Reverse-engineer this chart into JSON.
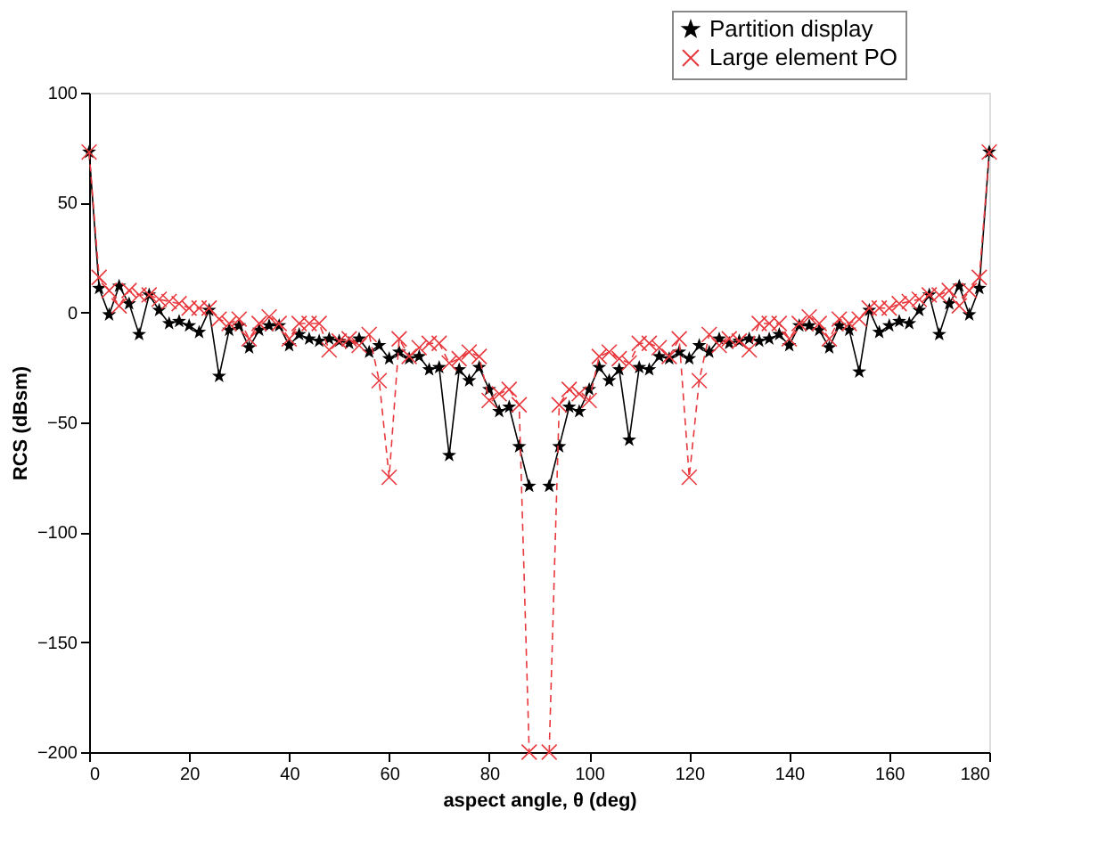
{
  "chart_data": {
    "type": "line",
    "xlabel": "aspect angle, θ (deg)",
    "ylabel": "RCS (dBsm)",
    "x": [
      0,
      2,
      4,
      6,
      8,
      10,
      12,
      14,
      16,
      18,
      20,
      22,
      24,
      26,
      28,
      30,
      32,
      34,
      36,
      38,
      40,
      42,
      44,
      46,
      48,
      50,
      52,
      54,
      56,
      58,
      60,
      62,
      64,
      66,
      68,
      70,
      72,
      74,
      76,
      78,
      80,
      82,
      84,
      86,
      88,
      90,
      92,
      94,
      96,
      98,
      100,
      102,
      104,
      106,
      108,
      110,
      112,
      114,
      116,
      118,
      120,
      122,
      124,
      126,
      128,
      130,
      132,
      134,
      136,
      138,
      140,
      142,
      144,
      146,
      148,
      150,
      152,
      154,
      156,
      158,
      160,
      162,
      164,
      166,
      168,
      170,
      172,
      174,
      176,
      178,
      180
    ],
    "series": [
      {
        "name": "Partition display",
        "color": "#000000",
        "marker": "star",
        "line_style": "solid",
        "values": [
          73,
          11,
          -1,
          12,
          4,
          -10,
          8,
          1,
          -5,
          -4,
          -6,
          -9,
          1,
          -29,
          -8,
          -6,
          -16,
          -8,
          -6,
          -6,
          -15,
          -10,
          -12,
          -13,
          -12,
          -13,
          -14,
          -12,
          -18,
          -15,
          -21,
          -18,
          -21,
          -20,
          -26,
          -25,
          -65,
          -26,
          -31,
          -25,
          -35,
          -45,
          -43,
          -61,
          -79,
          null,
          -79,
          -61,
          -43,
          -45,
          -35,
          -25,
          -31,
          -26,
          -58,
          -25,
          -26,
          -20,
          -21,
          -18,
          -21,
          -15,
          -18,
          -12,
          -14,
          -13,
          -12,
          -13,
          -12,
          -10,
          -15,
          -6,
          -6,
          -8,
          -16,
          -6,
          -8,
          -27,
          1,
          -9,
          -6,
          -4,
          -5,
          1,
          8,
          -10,
          4,
          12,
          -1,
          11,
          73
        ]
      },
      {
        "name": "Large element PO",
        "color": "#e8383d",
        "marker": "cross",
        "line_style": "dashed",
        "values": [
          73,
          16,
          10,
          3,
          10,
          8,
          8,
          6,
          5,
          4,
          2,
          2,
          2,
          -3,
          -5,
          -3,
          -12,
          -5,
          -2,
          -5,
          -12,
          -5,
          -5,
          -5,
          -17,
          -13,
          -12,
          -15,
          -10,
          -31,
          -75,
          -12,
          -20,
          -16,
          -14,
          -14,
          -23,
          -21,
          -18,
          -20,
          -40,
          -37,
          -35,
          -42,
          -200,
          null,
          -200,
          -42,
          -35,
          -37,
          -40,
          -20,
          -18,
          -21,
          -23,
          -14,
          -14,
          -16,
          -20,
          -12,
          -75,
          -31,
          -10,
          -15,
          -12,
          -13,
          -17,
          -5,
          -5,
          -5,
          -12,
          -5,
          -2,
          -5,
          -12,
          -3,
          -5,
          -3,
          2,
          2,
          2,
          4,
          5,
          6,
          8,
          8,
          10,
          3,
          10,
          16,
          73
        ]
      }
    ],
    "xlim": [
      0,
      180
    ],
    "xticks": [
      0,
      20,
      40,
      60,
      80,
      100,
      120,
      140,
      160,
      180
    ],
    "ylim": [
      -200,
      100
    ],
    "yticks": [
      -200,
      -150,
      -100,
      -50,
      0,
      50,
      100
    ],
    "grid": false,
    "legend": "top right"
  }
}
